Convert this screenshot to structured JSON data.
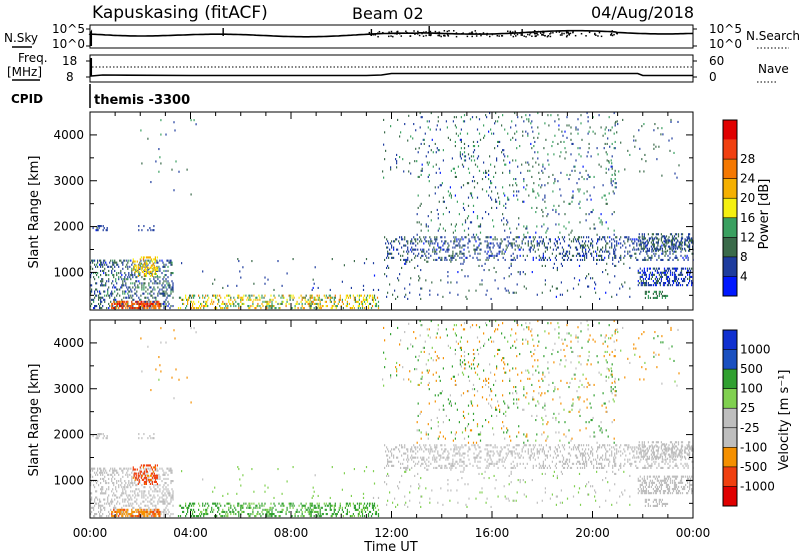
{
  "header": {
    "station": "Kapuskasing (fitACF)",
    "beam": "Beam 02",
    "date": "04/Aug/2018"
  },
  "panels": {
    "nsky": {
      "label": "N.Sky",
      "tick_top": "10^5",
      "tick_bottom": "10^0"
    },
    "nsearch": {
      "label": "N.Search",
      "tick_top": "10^5",
      "tick_bottom": "10^0"
    },
    "freq": {
      "label_line1": "Freq.",
      "label_line2": "[MHz]",
      "tick_top": "18",
      "tick_bottom": "8"
    },
    "nave": {
      "label": "Nave",
      "tick_top": "60",
      "tick_bottom": "0"
    },
    "cpid": {
      "label": "CPID",
      "value": "themis -3300"
    }
  },
  "colors": {
    "power": [
      "#0018ff",
      "#1e3c9e",
      "#3a6a4a",
      "#3aa060",
      "#f5f010",
      "#f5b000",
      "#f57800",
      "#f04010",
      "#e00000"
    ],
    "velocity": [
      "#e00000",
      "#f04010",
      "#f59000",
      "#bebebe",
      "#bebebe",
      "#80d050",
      "#30a030",
      "#1a50c0",
      "#1030d0"
    ],
    "velocity_gray": "#c8c8c8"
  },
  "power_colorbar": {
    "title": "Power [dB]",
    "ticks": [
      "4",
      "8",
      "12",
      "16",
      "20",
      "24",
      "28"
    ]
  },
  "velocity_colorbar": {
    "title": "Velocity [m s⁻¹]",
    "ticks": [
      "-1000",
      "-500",
      "-100",
      "-25",
      "25",
      "100",
      "500",
      "1000"
    ]
  },
  "chart_data": {
    "type": "heatmap",
    "title": "Kapuskasing (fitACF)",
    "xlabel": "Time UT",
    "x_ticks": [
      "00:00",
      "04:00",
      "08:00",
      "12:00",
      "16:00",
      "20:00",
      "00:00"
    ],
    "xlim_hours": [
      0,
      24
    ],
    "ylabel": "Slant Range [km]",
    "y_ticks": [
      "1000",
      "2000",
      "3000",
      "4000"
    ],
    "ylim_km": [
      180,
      4500
    ],
    "panels": [
      {
        "name": "power",
        "colorbar": "Power [dB]",
        "range": [
          0,
          30
        ]
      },
      {
        "name": "velocity",
        "colorbar": "Velocity [m s⁻¹]",
        "range": [
          -1000,
          1000
        ]
      }
    ],
    "echo_regions": [
      {
        "t": [
          0.0,
          3.3
        ],
        "r": [
          200,
          1300
        ],
        "power": 8,
        "velocity": -25
      },
      {
        "t": [
          0.8,
          2.8
        ],
        "r": [
          200,
          380
        ],
        "power": 26,
        "velocity": -500
      },
      {
        "t": [
          1.7,
          2.7
        ],
        "r": [
          900,
          1350
        ],
        "power": 18,
        "velocity": -1000
      },
      {
        "t": [
          3.5,
          11.5
        ],
        "r": [
          200,
          500
        ],
        "power": 16,
        "velocity": 100
      },
      {
        "t": [
          11.7,
          24.0
        ],
        "r": [
          1250,
          1800
        ],
        "power": 6,
        "velocity": 25
      },
      {
        "t": [
          13.0,
          21.0
        ],
        "r": [
          1800,
          4500
        ],
        "power": 8,
        "velocity": 0
      },
      {
        "t": [
          21.8,
          24.0
        ],
        "r": [
          750,
          1100
        ],
        "power": 5,
        "velocity": 25
      }
    ]
  }
}
